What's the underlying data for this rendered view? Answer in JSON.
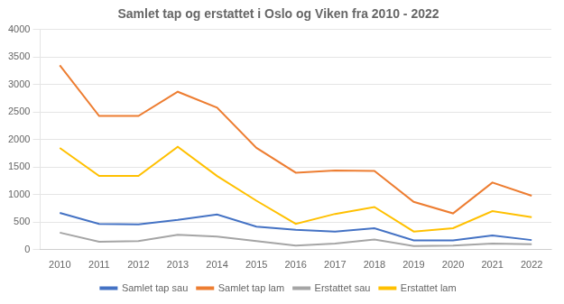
{
  "chart_data": {
    "type": "line",
    "title": "Samlet tap og erstattet i Oslo og Viken fra 2010 - 2022",
    "x": [
      2010,
      2011,
      2012,
      2013,
      2014,
      2015,
      2016,
      2017,
      2018,
      2019,
      2020,
      2021,
      2022
    ],
    "series": [
      {
        "name": "Samlet tap sau",
        "color": "#4472C4",
        "values": [
          670,
          470,
          460,
          540,
          640,
          420,
          360,
          330,
          390,
          170,
          170,
          260,
          175
        ]
      },
      {
        "name": "Samlet tap lam",
        "color": "#ED7D31",
        "values": [
          3350,
          2430,
          2430,
          2870,
          2580,
          1850,
          1400,
          1440,
          1430,
          870,
          660,
          1220,
          980
        ]
      },
      {
        "name": "Erstattet sau",
        "color": "#A5A5A5",
        "values": [
          310,
          145,
          155,
          270,
          240,
          155,
          75,
          110,
          185,
          65,
          75,
          110,
          100
        ]
      },
      {
        "name": "Erstattet lam",
        "color": "#FFC000",
        "values": [
          1850,
          1340,
          1340,
          1870,
          1340,
          890,
          470,
          650,
          775,
          330,
          390,
          700,
          590
        ]
      }
    ],
    "xlim": [
      2009.5,
      2022.5
    ],
    "xticks": [
      2010,
      2011,
      2012,
      2013,
      2014,
      2015,
      2016,
      2017,
      2018,
      2019,
      2020,
      2021,
      2022
    ],
    "ylim": [
      0,
      4000
    ],
    "yticks": [
      0,
      500,
      1000,
      1500,
      2000,
      2500,
      3000,
      3500,
      4000
    ],
    "grid": "y",
    "legend": "bottom"
  }
}
